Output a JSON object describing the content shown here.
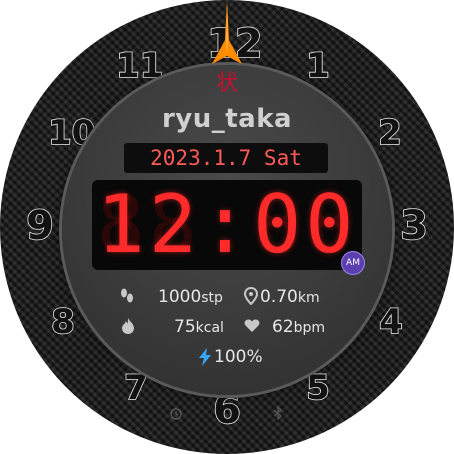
{
  "watchface": {
    "numerals": [
      "12",
      "1",
      "2",
      "3",
      "4",
      "5",
      "6",
      "7",
      "8",
      "9",
      "10",
      "11"
    ],
    "logo_glyph": "状",
    "brand": "ryu_taka",
    "date": "2023.1.7 Sat",
    "time": "12:00",
    "time_ghost": "88:88",
    "ampm": "AM",
    "steps": {
      "value": "1000",
      "unit": "stp",
      "icon": "footsteps-icon"
    },
    "distance": {
      "value": "0.70",
      "unit": "km",
      "icon": "location-pin-icon"
    },
    "calories": {
      "value": "75",
      "unit": "kcal",
      "icon": "flame-icon"
    },
    "heart_rate": {
      "value": "62",
      "unit": "bpm",
      "icon": "heart-icon"
    },
    "battery": {
      "value": "100%",
      "icon": "lightning-icon"
    },
    "status_icons": [
      "alarm-icon",
      "bluetooth-icon"
    ],
    "colors": {
      "accent_red": "#ff2a2a",
      "hand_orange": "#ff8c00",
      "battery_blue": "#38a8ff",
      "ampm_purple": "#5b3fb0"
    }
  }
}
